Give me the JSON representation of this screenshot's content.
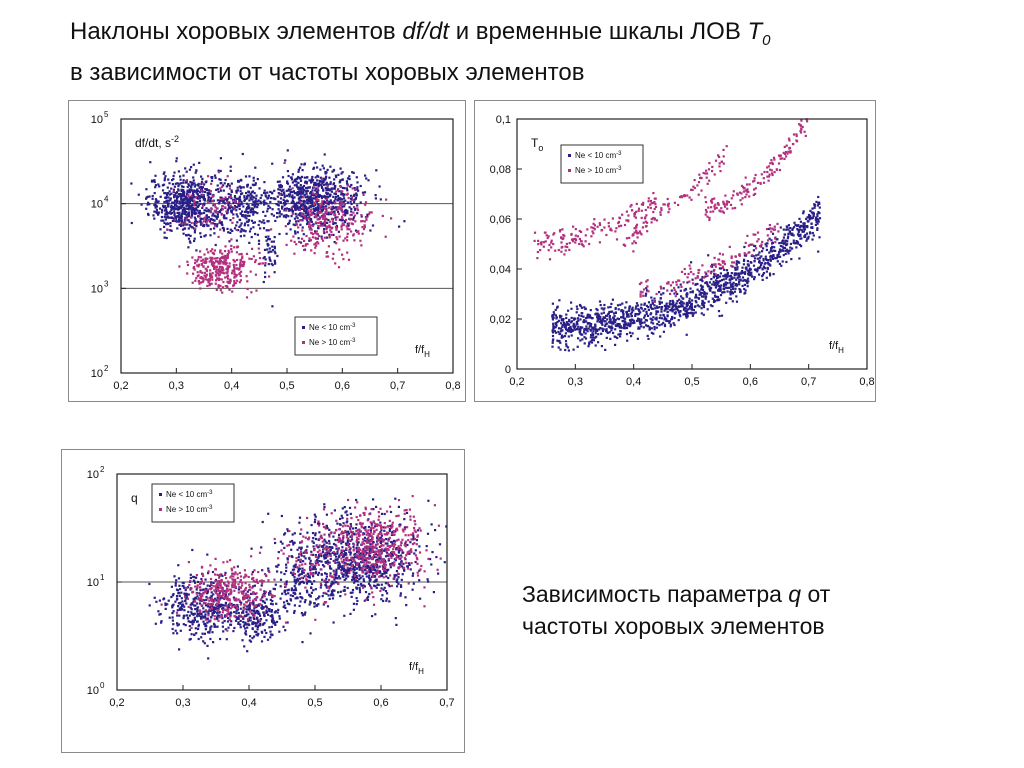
{
  "title": {
    "part1": "Наклоны хоровых элементов ",
    "dfdt": "df/dt",
    "part2": " и временные шкалы ЛОВ ",
    "T": "T",
    "T_sub": "0",
    "line2": "в зависимости от частоты  хоровых элементов"
  },
  "caption": {
    "part1": "Зависимость параметра ",
    "q": "q",
    "part2": " от",
    "line2": "частоты  хоровых элементов"
  },
  "colors": {
    "low_density": "#2a1f86",
    "high_density": "#b3307f"
  },
  "chart_data": [
    {
      "id": "dfdt",
      "type": "scatter",
      "ylabel": "df/dt, s",
      "ylabel_sup": "-2",
      "xlabel": "f/f",
      "xlabel_sub": "H",
      "xlim": [
        0.2,
        0.8
      ],
      "ylim": [
        100,
        100000
      ],
      "log_y": true,
      "x_ticks": [
        "0,2",
        "0,3",
        "0,4",
        "0,5",
        "0,6",
        "0,7",
        "0,8"
      ],
      "y_ticks": [
        {
          "base": "10",
          "exp": "2"
        },
        {
          "base": "10",
          "exp": "3"
        },
        {
          "base": "10",
          "exp": "4"
        },
        {
          "base": "10",
          "exp": "5"
        }
      ],
      "hlines": [
        1000,
        10000
      ],
      "legend_position": "bottom-right",
      "series": [
        {
          "name": "Ne < 10 cm",
          "name_sup": "-3",
          "color": "#2a1f86",
          "clusters": [
            {
              "x": 0.32,
              "y": 10000,
              "sx": 0.035,
              "sy": 0.18,
              "n": 650
            },
            {
              "x": 0.42,
              "y": 9000,
              "sx": 0.025,
              "sy": 0.2,
              "n": 250
            },
            {
              "x": 0.55,
              "y": 11000,
              "sx": 0.045,
              "sy": 0.18,
              "n": 750
            },
            {
              "x": 0.47,
              "y": 2500,
              "sx": 0.006,
              "sy": 0.2,
              "n": 40
            }
          ]
        },
        {
          "name": "Ne > 10 cm",
          "name_sup": "-3",
          "color": "#b3307f",
          "clusters": [
            {
              "x": 0.38,
              "y": 1700,
              "sx": 0.03,
              "sy": 0.12,
              "n": 320
            },
            {
              "x": 0.58,
              "y": 6000,
              "sx": 0.04,
              "sy": 0.2,
              "n": 260
            },
            {
              "x": 0.36,
              "y": 9000,
              "sx": 0.03,
              "sy": 0.18,
              "n": 70
            }
          ]
        }
      ]
    },
    {
      "id": "T0",
      "type": "scatter",
      "ylabel": "T",
      "ylabel_sub": "o",
      "xlabel": "f/f",
      "xlabel_sub": "H",
      "xlim": [
        0.2,
        0.8
      ],
      "ylim": [
        0,
        0.1
      ],
      "x_ticks": [
        "0,2",
        "0,3",
        "0,4",
        "0,5",
        "0,6",
        "0,7",
        "0,8"
      ],
      "y_ticks": [
        "0",
        "0,02",
        "0,04",
        "0,06",
        "0,08",
        "0,1"
      ],
      "legend_position": "top-left",
      "series": [
        {
          "name": "Ne < 10 cm",
          "name_sup": "-3",
          "color": "#2a1f86",
          "bands": [
            {
              "x0": 0.26,
              "x1": 0.72,
              "y0": 0.017,
              "y1": 0.062,
              "curve": 2.2,
              "w": 0.004,
              "n": 1300
            }
          ]
        },
        {
          "name": "Ne > 10 cm",
          "name_sup": "-3",
          "color": "#b3307f",
          "bands": [
            {
              "x0": 0.23,
              "x1": 0.44,
              "y0": 0.049,
              "y1": 0.067,
              "curve": 1.6,
              "w": 0.0025,
              "n": 150
            },
            {
              "x0": 0.38,
              "x1": 0.44,
              "y0": 0.05,
              "y1": 0.062,
              "curve": 1.0,
              "w": 0.002,
              "n": 40
            },
            {
              "x0": 0.44,
              "x1": 0.56,
              "y0": 0.063,
              "y1": 0.086,
              "curve": 1.3,
              "w": 0.002,
              "n": 60
            },
            {
              "x0": 0.52,
              "x1": 0.7,
              "y0": 0.064,
              "y1": 0.1,
              "curve": 1.8,
              "w": 0.002,
              "n": 150
            },
            {
              "x0": 0.41,
              "x1": 0.65,
              "y0": 0.031,
              "y1": 0.057,
              "curve": 1.6,
              "w": 0.002,
              "n": 120
            }
          ]
        }
      ]
    },
    {
      "id": "q",
      "type": "scatter",
      "ylabel": "q",
      "xlabel": "f/f",
      "xlabel_sub": "H",
      "xlim": [
        0.2,
        0.7
      ],
      "ylim": [
        1,
        100
      ],
      "log_y": true,
      "x_ticks": [
        "0,2",
        "0,3",
        "0,4",
        "0,5",
        "0,6",
        "0,7"
      ],
      "y_ticks": [
        {
          "base": "10",
          "exp": "0"
        },
        {
          "base": "10",
          "exp": "1"
        },
        {
          "base": "10",
          "exp": "2"
        }
      ],
      "hlines": [
        10
      ],
      "legend_position": "top-left",
      "series": [
        {
          "name": "Ne < 10 cm",
          "name_sup": "-3",
          "color": "#2a1f86",
          "clusters": [
            {
              "x": 0.33,
              "y": 6,
              "sx": 0.03,
              "sy": 0.15,
              "n": 400
            },
            {
              "x": 0.41,
              "y": 5,
              "sx": 0.02,
              "sy": 0.12,
              "n": 250
            },
            {
              "x": 0.56,
              "y": 16,
              "sx": 0.05,
              "sy": 0.2,
              "n": 850
            },
            {
              "x": 0.48,
              "y": 9,
              "sx": 0.025,
              "sy": 0.15,
              "n": 150
            }
          ]
        },
        {
          "name": "Ne > 10 cm",
          "name_sup": "-3",
          "color": "#b3307f",
          "clusters": [
            {
              "x": 0.37,
              "y": 8,
              "sx": 0.03,
              "sy": 0.12,
              "n": 330
            },
            {
              "x": 0.59,
              "y": 22,
              "sx": 0.04,
              "sy": 0.18,
              "n": 450
            },
            {
              "x": 0.5,
              "y": 14,
              "sx": 0.03,
              "sy": 0.2,
              "n": 80
            }
          ]
        }
      ]
    }
  ]
}
